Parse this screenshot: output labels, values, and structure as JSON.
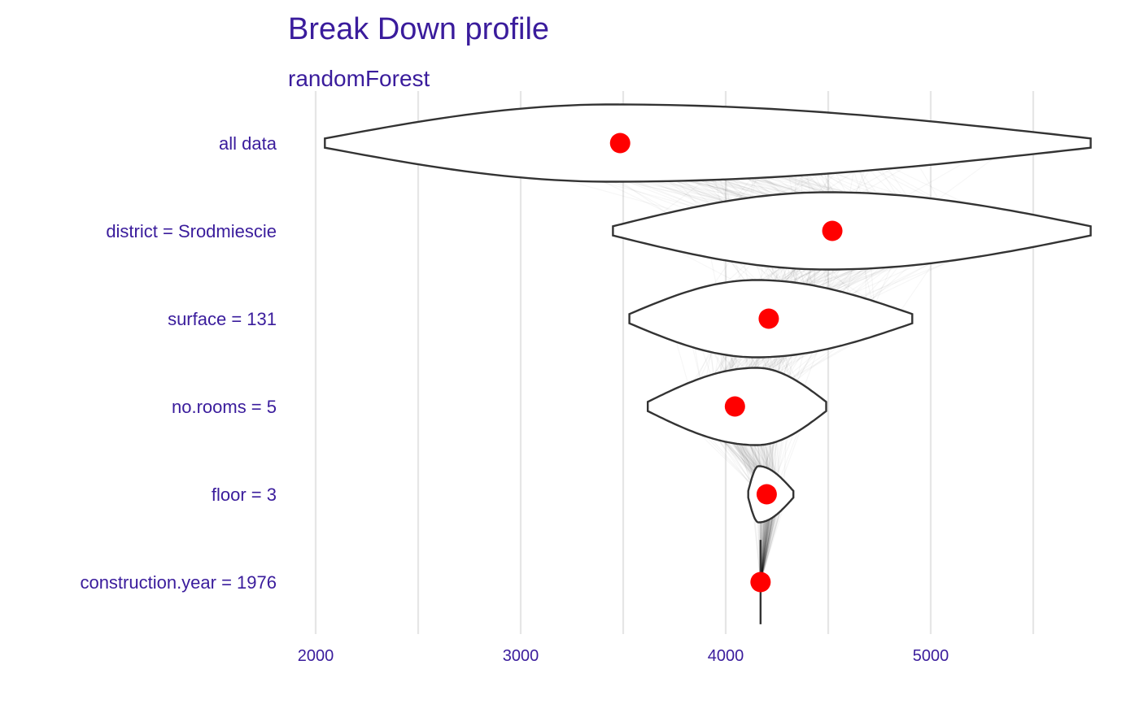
{
  "chart_data": {
    "type": "violin",
    "title": "Break Down profile",
    "subtitle": "randomForest",
    "xlabel": "",
    "ylabel": "",
    "xlim": [
      1850,
      5780
    ],
    "x_ticks": [
      2000,
      3000,
      4000,
      5000
    ],
    "x_ticklabels": [
      "2000",
      "3000",
      "4000",
      "5000"
    ],
    "minor_gridlines": [
      2500,
      3500,
      4500,
      5500
    ],
    "grid": true,
    "legend": "none",
    "categories": [
      "all data",
      "district = Srodmiescie",
      "surface = 131",
      "no.rooms = 5",
      "floor = 3",
      "construction.year = 1976"
    ],
    "points": [
      3485,
      4520,
      4210,
      4045,
      4200,
      4170
    ],
    "violins": [
      {
        "min": 2045,
        "max": 5780,
        "mode": 3450,
        "halfwidth": 0.44
      },
      {
        "min": 3450,
        "max": 5780,
        "mode": 4500,
        "halfwidth": 0.44
      },
      {
        "min": 3530,
        "max": 4910,
        "mode": 4150,
        "halfwidth": 0.44
      },
      {
        "min": 3620,
        "max": 4490,
        "mode": 4150,
        "halfwidth": 0.44
      },
      {
        "min": 4110,
        "max": 4330,
        "mode": 4160,
        "halfwidth": 0.32
      },
      {
        "min": 4170,
        "max": 4170,
        "mode": 4170,
        "halfwidth": 0.48
      }
    ],
    "colors": {
      "text": "#3a1c9c",
      "point": "#ff0000",
      "outline": "#333333",
      "fill": "#ffffff",
      "grid": "#e6e6e6",
      "paths": "#000000"
    }
  }
}
